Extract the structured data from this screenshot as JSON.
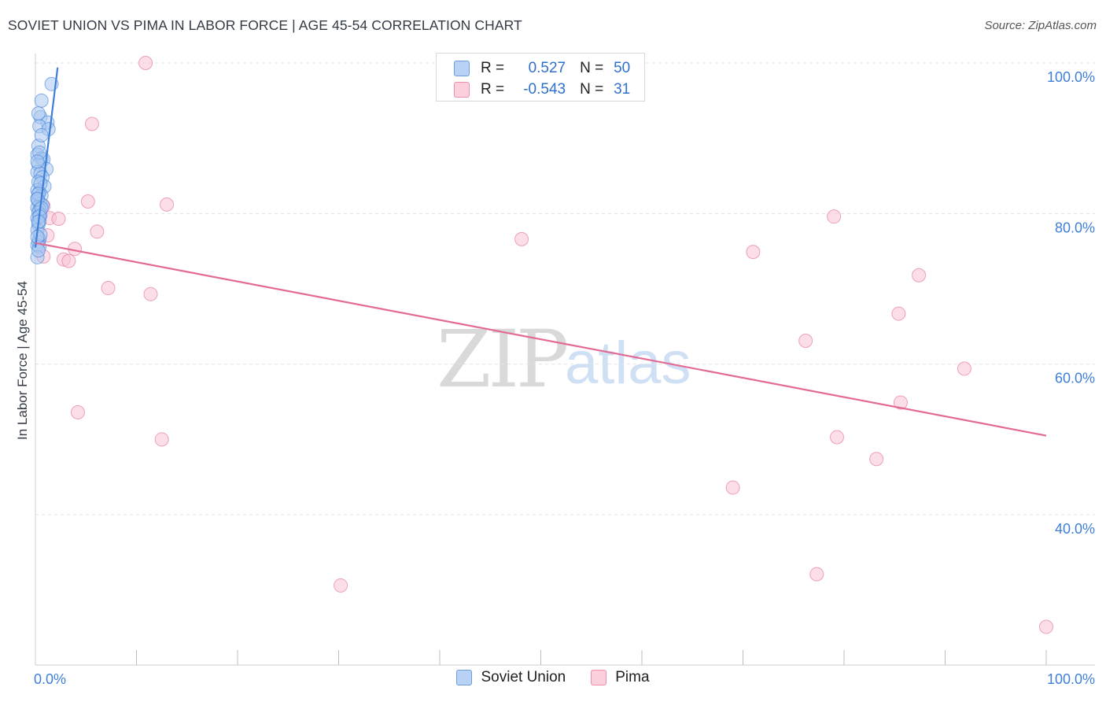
{
  "title": "SOVIET UNION VS PIMA IN LABOR FORCE | AGE 45-54 CORRELATION CHART",
  "source": "Source: ZipAtlas.com",
  "watermark": {
    "zip": "ZIP",
    "atlas": "atlas"
  },
  "colors": {
    "blue": "#3f7fd8",
    "blue_fill": "#a9c8f0",
    "pink": "#e36a95",
    "pink_fill": "#f7c3d3",
    "grid": "#e3e3e3",
    "tick_label": "#3f7fd8"
  },
  "legend_top": [
    {
      "r_label": "R =",
      "r_value": "0.527",
      "n_label": "N =",
      "n_value": "50"
    },
    {
      "r_label": "R =",
      "r_value": "-0.543",
      "n_label": "N =",
      "n_value": "31"
    }
  ],
  "legend_bottom": [
    "Soviet Union",
    "Pima"
  ],
  "chart_data": {
    "type": "scatter",
    "title": "SOVIET UNION VS PIMA IN LABOR FORCE | AGE 45-54 CORRELATION CHART",
    "xlabel": "",
    "ylabel": "In Labor Force | Age 45-54",
    "xlim": [
      0,
      100
    ],
    "ylim": [
      22,
      102
    ],
    "x_tick_labels": [
      "0.0%",
      "100.0%"
    ],
    "y_ticks": [
      40,
      60,
      80,
      100
    ],
    "y_tick_labels": [
      "40.0%",
      "60.0%",
      "80.0%",
      "100.0%"
    ],
    "grid": true,
    "series": [
      {
        "name": "Soviet Union",
        "points": [
          [
            1.6,
            97.2
          ],
          [
            0.6,
            95.0
          ],
          [
            0.5,
            92.8
          ],
          [
            1.2,
            92.1
          ],
          [
            0.4,
            91.6
          ],
          [
            1.3,
            91.2
          ],
          [
            0.3,
            89.0
          ],
          [
            0.2,
            87.8
          ],
          [
            0.6,
            87.3
          ],
          [
            0.8,
            87.2
          ],
          [
            0.3,
            86.5
          ],
          [
            1.1,
            85.9
          ],
          [
            0.2,
            85.5
          ],
          [
            0.5,
            85.3
          ],
          [
            0.7,
            84.8
          ],
          [
            0.3,
            84.2
          ],
          [
            0.9,
            83.6
          ],
          [
            0.2,
            83.1
          ],
          [
            0.4,
            82.8
          ],
          [
            0.6,
            82.4
          ],
          [
            0.2,
            82.0
          ],
          [
            0.3,
            81.6
          ],
          [
            0.5,
            81.3
          ],
          [
            0.7,
            81.1
          ],
          [
            0.2,
            80.8
          ],
          [
            0.4,
            80.5
          ],
          [
            0.3,
            80.1
          ],
          [
            0.5,
            79.8
          ],
          [
            0.2,
            79.4
          ],
          [
            0.4,
            79.0
          ],
          [
            0.3,
            78.5
          ],
          [
            0.2,
            77.8
          ],
          [
            0.4,
            76.6
          ],
          [
            0.3,
            76.2
          ],
          [
            0.2,
            75.8
          ],
          [
            0.4,
            75.6
          ],
          [
            0.2,
            74.2
          ],
          [
            0.3,
            93.3
          ],
          [
            0.6,
            90.4
          ],
          [
            0.4,
            88.1
          ],
          [
            0.2,
            86.9
          ],
          [
            0.5,
            84.0
          ],
          [
            0.3,
            82.6
          ],
          [
            0.2,
            81.9
          ],
          [
            0.6,
            80.7
          ],
          [
            0.4,
            79.6
          ],
          [
            0.3,
            78.9
          ],
          [
            0.5,
            77.2
          ],
          [
            0.2,
            76.9
          ],
          [
            0.3,
            75.1
          ]
        ],
        "trend": {
          "x": [
            0.0,
            2.2
          ],
          "y": [
            75.5,
            99.4
          ]
        }
      },
      {
        "name": "Pima",
        "points": [
          [
            10.9,
            100.0
          ],
          [
            5.6,
            91.9
          ],
          [
            5.2,
            81.6
          ],
          [
            13.0,
            81.2
          ],
          [
            0.8,
            81.0
          ],
          [
            1.4,
            79.4
          ],
          [
            2.3,
            79.3
          ],
          [
            6.1,
            77.6
          ],
          [
            1.2,
            77.1
          ],
          [
            3.9,
            75.3
          ],
          [
            0.8,
            74.3
          ],
          [
            2.8,
            73.9
          ],
          [
            3.3,
            73.7
          ],
          [
            7.2,
            70.1
          ],
          [
            11.4,
            69.3
          ],
          [
            48.1,
            76.6
          ],
          [
            71.0,
            74.9
          ],
          [
            79.0,
            79.6
          ],
          [
            87.4,
            71.8
          ],
          [
            85.4,
            66.7
          ],
          [
            76.2,
            63.1
          ],
          [
            91.9,
            59.4
          ],
          [
            85.6,
            54.9
          ],
          [
            79.3,
            50.3
          ],
          [
            4.2,
            53.6
          ],
          [
            12.5,
            50.0
          ],
          [
            83.2,
            47.4
          ],
          [
            69.0,
            43.6
          ],
          [
            30.2,
            30.6
          ],
          [
            77.3,
            32.1
          ],
          [
            100.0,
            25.1
          ]
        ],
        "trend": {
          "x": [
            0.0,
            100.0
          ],
          "y": [
            76.1,
            50.5
          ]
        }
      }
    ]
  }
}
